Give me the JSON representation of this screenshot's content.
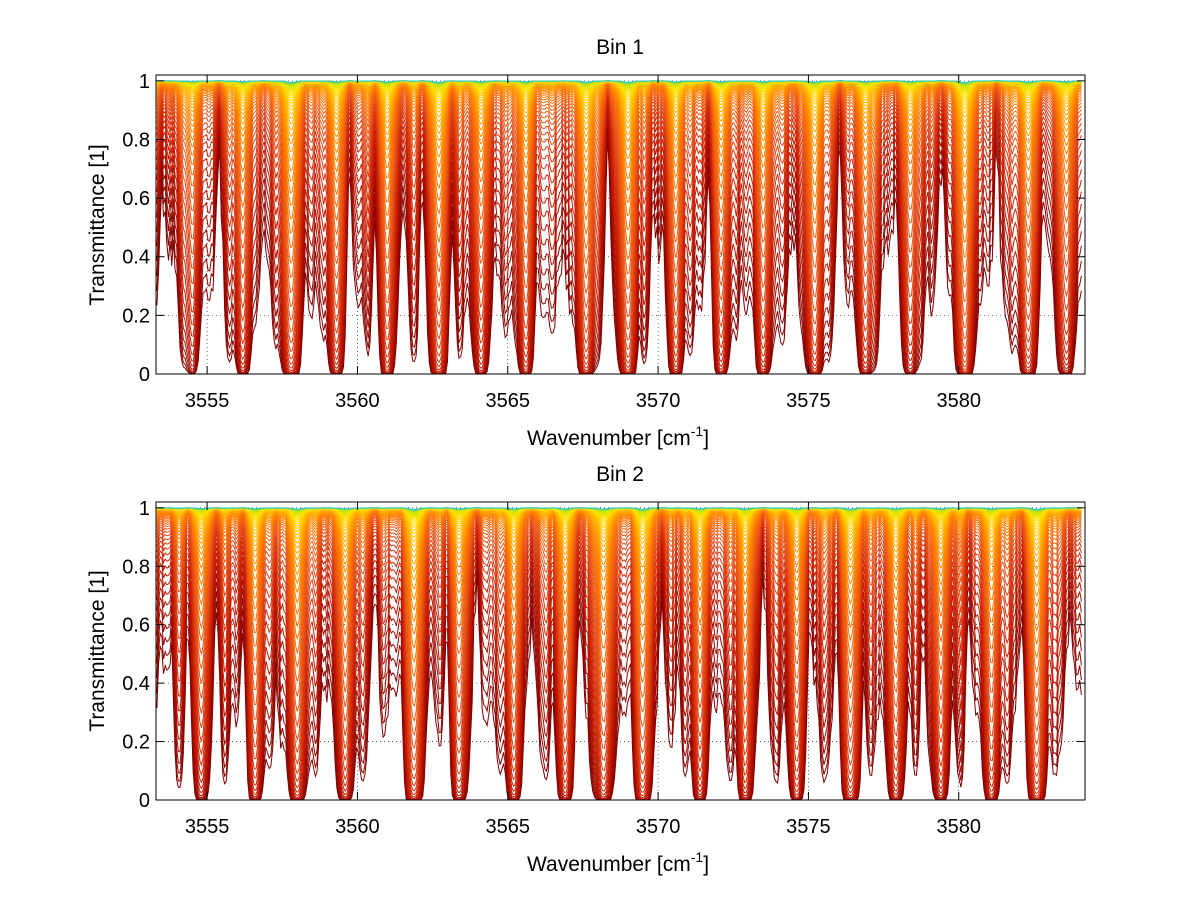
{
  "colors": {
    "background": "#ffffff",
    "axes": "#000000",
    "grid": "#000000",
    "colormap": [
      "#800000",
      "#c81a00",
      "#e8501a",
      "#ff7a00",
      "#ffb000",
      "#ffe000",
      "#c8e600",
      "#30c8c0"
    ]
  },
  "chart_data": [
    {
      "type": "line",
      "title": "Bin 1",
      "xlabel": "Wavenumber [cm",
      "xlabel_sup": "-1",
      "xlabel_end": "]",
      "ylabel": "Transmittance [1]",
      "xlim": [
        3553.3,
        3584.2
      ],
      "ylim": [
        0,
        1.02
      ],
      "xticks": [
        3555,
        3560,
        3565,
        3570,
        3575,
        3580
      ],
      "xtick_labels": [
        "3555",
        "3560",
        "3565",
        "3570",
        "3575",
        "3580"
      ],
      "yticks": [
        0,
        0.2,
        0.4,
        0.6,
        0.8,
        1
      ],
      "ytick_labels": [
        "0",
        "0.2",
        "0.4",
        "0.6",
        "0.8",
        "1"
      ],
      "grid": "dotted",
      "legend": "none",
      "series_count": 60,
      "series_description": "family of transmittance spectra, one per path length, colored dark red (strongest absorption) to yellow/cyan (weakest)",
      "absorption_lines": [
        {
          "x": 3554.5,
          "depth": 0.35,
          "width": 0.18
        },
        {
          "x": 3556.2,
          "depth": 0.5,
          "width": 0.2
        },
        {
          "x": 3557.8,
          "depth": 0.9,
          "width": 0.22
        },
        {
          "x": 3559.3,
          "depth": 0.55,
          "width": 0.2
        },
        {
          "x": 3561.0,
          "depth": 0.6,
          "width": 0.2
        },
        {
          "x": 3562.7,
          "depth": 0.8,
          "width": 0.22
        },
        {
          "x": 3564.1,
          "depth": 0.5,
          "width": 0.2
        },
        {
          "x": 3565.6,
          "depth": 0.55,
          "width": 0.2
        },
        {
          "x": 3567.6,
          "depth": 0.75,
          "width": 0.22
        },
        {
          "x": 3569.0,
          "depth": 0.85,
          "width": 0.22
        },
        {
          "x": 3570.6,
          "depth": 0.6,
          "width": 0.2
        },
        {
          "x": 3572.1,
          "depth": 0.5,
          "width": 0.2
        },
        {
          "x": 3573.5,
          "depth": 0.55,
          "width": 0.2
        },
        {
          "x": 3575.2,
          "depth": 0.7,
          "width": 0.22
        },
        {
          "x": 3576.9,
          "depth": 0.5,
          "width": 0.2
        },
        {
          "x": 3578.4,
          "depth": 0.45,
          "width": 0.2
        },
        {
          "x": 3580.2,
          "depth": 0.9,
          "width": 0.22
        },
        {
          "x": 3582.3,
          "depth": 0.65,
          "width": 0.22
        },
        {
          "x": 3583.6,
          "depth": 0.5,
          "width": 0.2
        }
      ]
    },
    {
      "type": "line",
      "title": "Bin 2",
      "xlabel": "Wavenumber [cm",
      "xlabel_sup": "-1",
      "xlabel_end": "]",
      "ylabel": "Transmittance [1]",
      "xlim": [
        3553.3,
        3584.2
      ],
      "ylim": [
        0,
        1.02
      ],
      "xticks": [
        3555,
        3560,
        3565,
        3570,
        3575,
        3580
      ],
      "xtick_labels": [
        "3555",
        "3560",
        "3565",
        "3570",
        "3575",
        "3580"
      ],
      "yticks": [
        0,
        0.2,
        0.4,
        0.6,
        0.8,
        1
      ],
      "ytick_labels": [
        "0",
        "0.2",
        "0.4",
        "0.6",
        "0.8",
        "1"
      ],
      "grid": "dotted",
      "legend": "none",
      "series_count": 60,
      "series_description": "family of transmittance spectra, one per path length, colored dark red (strongest absorption) to yellow/cyan (weakest)",
      "absorption_lines": [
        {
          "x": 3554.8,
          "depth": 0.45,
          "width": 0.2
        },
        {
          "x": 3556.6,
          "depth": 0.55,
          "width": 0.2
        },
        {
          "x": 3558.0,
          "depth": 0.7,
          "width": 0.22
        },
        {
          "x": 3559.6,
          "depth": 0.6,
          "width": 0.2
        },
        {
          "x": 3561.9,
          "depth": 0.85,
          "width": 0.22
        },
        {
          "x": 3563.4,
          "depth": 0.5,
          "width": 0.2
        },
        {
          "x": 3565.2,
          "depth": 0.55,
          "width": 0.2
        },
        {
          "x": 3566.9,
          "depth": 0.6,
          "width": 0.2
        },
        {
          "x": 3568.2,
          "depth": 0.7,
          "width": 0.22
        },
        {
          "x": 3569.5,
          "depth": 0.75,
          "width": 0.22
        },
        {
          "x": 3571.4,
          "depth": 0.55,
          "width": 0.2
        },
        {
          "x": 3572.9,
          "depth": 0.6,
          "width": 0.2
        },
        {
          "x": 3574.6,
          "depth": 0.5,
          "width": 0.2
        },
        {
          "x": 3576.4,
          "depth": 0.7,
          "width": 0.22
        },
        {
          "x": 3577.9,
          "depth": 0.6,
          "width": 0.2
        },
        {
          "x": 3579.4,
          "depth": 0.55,
          "width": 0.2
        },
        {
          "x": 3581.1,
          "depth": 0.6,
          "width": 0.2
        },
        {
          "x": 3582.6,
          "depth": 0.85,
          "width": 0.22
        }
      ]
    }
  ]
}
